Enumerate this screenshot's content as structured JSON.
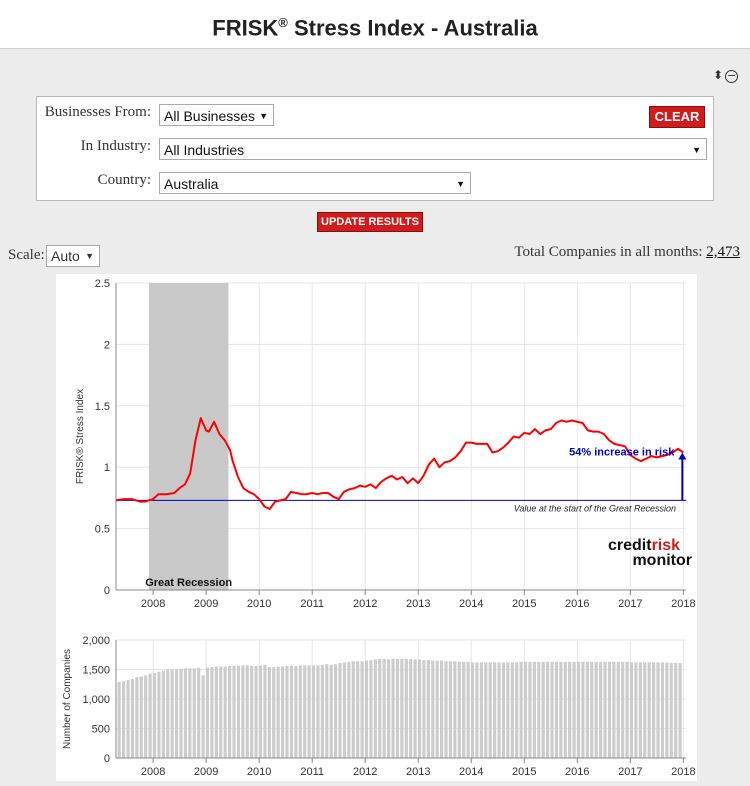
{
  "title": {
    "main": "FRISK",
    "sup": "®",
    "rest": " Stress Index - Australia"
  },
  "filters": {
    "businesses_label": "Businesses From:",
    "businesses_value": "All Businesses",
    "industry_label": "In Industry:",
    "industry_value": "All Industries",
    "country_label": "Country:",
    "country_value": "Australia",
    "clear_label": "CLEAR"
  },
  "update_label": "UPDATE RESULTS",
  "scale": {
    "label": "Scale:",
    "value": "Auto"
  },
  "total": {
    "label": "Total Companies in all months:",
    "value": "2,473"
  },
  "icons": {
    "sort": "sort-updown-icon",
    "minimize": "minus-circle-icon",
    "dropdown": "caret-down-icon"
  },
  "colors": {
    "accent_red": "#d01c1c",
    "line": "#ff0000",
    "baseline": "#0000cc",
    "recession": "#c8c8c8",
    "bars": "#cccccc"
  },
  "chart_data": [
    {
      "type": "line",
      "ylabel": "FRISK® Stress Index",
      "ylim": [
        0,
        2.5
      ],
      "xlim": [
        2007.3,
        2018.05
      ],
      "yticks": [
        "0",
        "0.5",
        "1",
        "1.5",
        "2",
        "2.5"
      ],
      "xticks": [
        "2008",
        "2009",
        "2010",
        "2011",
        "2012",
        "2013",
        "2014",
        "2015",
        "2016",
        "2017",
        "2018"
      ],
      "shaded_region": {
        "label": "Great Recession",
        "x": [
          2007.92,
          2009.42
        ]
      },
      "baseline": {
        "value": 0.73,
        "label": "Value at the start of the Great Recession"
      },
      "annotation": {
        "label": "54% increase in risk",
        "x": 2018.0,
        "from": 0.73,
        "to": 1.12
      },
      "watermark": {
        "line1_a": "credit",
        "line1_b": "risk",
        "line2": "monitor"
      },
      "series": [
        {
          "x": [
            2007.3,
            2007.45,
            2007.6,
            2007.75,
            2007.85,
            2008.0,
            2008.1,
            2008.25,
            2008.4,
            2008.5,
            2008.6,
            2008.7,
            2008.8,
            2008.9,
            2009.0,
            2009.05,
            2009.15,
            2009.25,
            2009.35,
            2009.45,
            2009.5,
            2009.6,
            2009.7,
            2009.8,
            2009.9,
            2010.0,
            2010.1,
            2010.2,
            2010.3,
            2010.4,
            2010.5,
            2010.6,
            2010.7,
            2010.8,
            2010.9,
            2011.0,
            2011.1,
            2011.2,
            2011.3,
            2011.4,
            2011.5,
            2011.6,
            2011.7,
            2011.8,
            2011.9,
            2012.0,
            2012.1,
            2012.2,
            2012.3,
            2012.4,
            2012.5,
            2012.6,
            2012.7,
            2012.8,
            2012.9,
            2013.0,
            2013.1,
            2013.2,
            2013.3,
            2013.4,
            2013.5,
            2013.6,
            2013.7,
            2013.8,
            2013.9,
            2014.0,
            2014.1,
            2014.2,
            2014.3,
            2014.4,
            2014.5,
            2014.6,
            2014.7,
            2014.8,
            2014.9,
            2015.0,
            2015.1,
            2015.2,
            2015.3,
            2015.4,
            2015.5,
            2015.6,
            2015.7,
            2015.8,
            2015.9,
            2016.0,
            2016.1,
            2016.2,
            2016.3,
            2016.4,
            2016.5,
            2016.6,
            2016.7,
            2016.8,
            2016.9,
            2017.0,
            2017.1,
            2017.2,
            2017.3,
            2017.4,
            2017.5,
            2017.6,
            2017.7,
            2017.8,
            2017.9,
            2018.0
          ],
          "y": [
            0.73,
            0.74,
            0.74,
            0.72,
            0.72,
            0.74,
            0.78,
            0.78,
            0.79,
            0.83,
            0.86,
            0.95,
            1.22,
            1.4,
            1.3,
            1.29,
            1.37,
            1.27,
            1.22,
            1.14,
            1.05,
            0.92,
            0.83,
            0.8,
            0.78,
            0.74,
            0.68,
            0.66,
            0.72,
            0.73,
            0.74,
            0.8,
            0.79,
            0.78,
            0.78,
            0.79,
            0.78,
            0.79,
            0.79,
            0.76,
            0.74,
            0.8,
            0.82,
            0.83,
            0.85,
            0.84,
            0.86,
            0.83,
            0.88,
            0.91,
            0.93,
            0.9,
            0.92,
            0.87,
            0.91,
            0.87,
            0.93,
            1.02,
            1.07,
            1.0,
            1.04,
            1.05,
            1.08,
            1.13,
            1.2,
            1.2,
            1.19,
            1.19,
            1.19,
            1.12,
            1.13,
            1.16,
            1.2,
            1.25,
            1.24,
            1.28,
            1.27,
            1.31,
            1.27,
            1.3,
            1.31,
            1.36,
            1.38,
            1.37,
            1.38,
            1.37,
            1.36,
            1.3,
            1.29,
            1.29,
            1.27,
            1.22,
            1.19,
            1.18,
            1.17,
            1.1,
            1.07,
            1.05,
            1.07,
            1.09,
            1.08,
            1.09,
            1.1,
            1.12,
            1.15,
            1.12
          ]
        }
      ]
    },
    {
      "type": "bar",
      "ylabel": "Number of Companies",
      "ylim": [
        0,
        2000
      ],
      "xlim": [
        2007.3,
        2018.05
      ],
      "yticks": [
        "0",
        "500",
        "1,000",
        "1,500",
        "2,000"
      ],
      "xticks": [
        "2008",
        "2009",
        "2010",
        "2011",
        "2012",
        "2013",
        "2014",
        "2015",
        "2016",
        "2017",
        "2018"
      ],
      "series": [
        {
          "x_start": 2007.33,
          "x_step": 0.0833,
          "values": [
            1290,
            1300,
            1320,
            1340,
            1370,
            1380,
            1400,
            1430,
            1440,
            1460,
            1480,
            1500,
            1500,
            1500,
            1510,
            1520,
            1520,
            1520,
            1530,
            1400,
            1530,
            1540,
            1550,
            1550,
            1550,
            1560,
            1560,
            1560,
            1570,
            1570,
            1560,
            1560,
            1570,
            1580,
            1540,
            1540,
            1550,
            1550,
            1560,
            1560,
            1560,
            1570,
            1570,
            1570,
            1570,
            1570,
            1580,
            1590,
            1580,
            1590,
            1610,
            1620,
            1630,
            1640,
            1640,
            1640,
            1650,
            1660,
            1670,
            1680,
            1680,
            1670,
            1680,
            1680,
            1680,
            1680,
            1680,
            1670,
            1670,
            1660,
            1660,
            1650,
            1650,
            1650,
            1640,
            1640,
            1640,
            1630,
            1630,
            1630,
            1620,
            1620,
            1620,
            1620,
            1620,
            1620,
            1620,
            1620,
            1620,
            1620,
            1620,
            1630,
            1630,
            1630,
            1630,
            1630,
            1630,
            1630,
            1630,
            1630,
            1630,
            1630,
            1630,
            1630,
            1630,
            1630,
            1630,
            1630,
            1630,
            1630,
            1630,
            1630,
            1630,
            1630,
            1630,
            1630,
            1620,
            1620,
            1620,
            1620,
            1620,
            1620,
            1620,
            1620,
            1620,
            1610,
            1610,
            1610,
            1610,
            1610,
            1610,
            1610,
            1610
          ]
        }
      ]
    }
  ]
}
